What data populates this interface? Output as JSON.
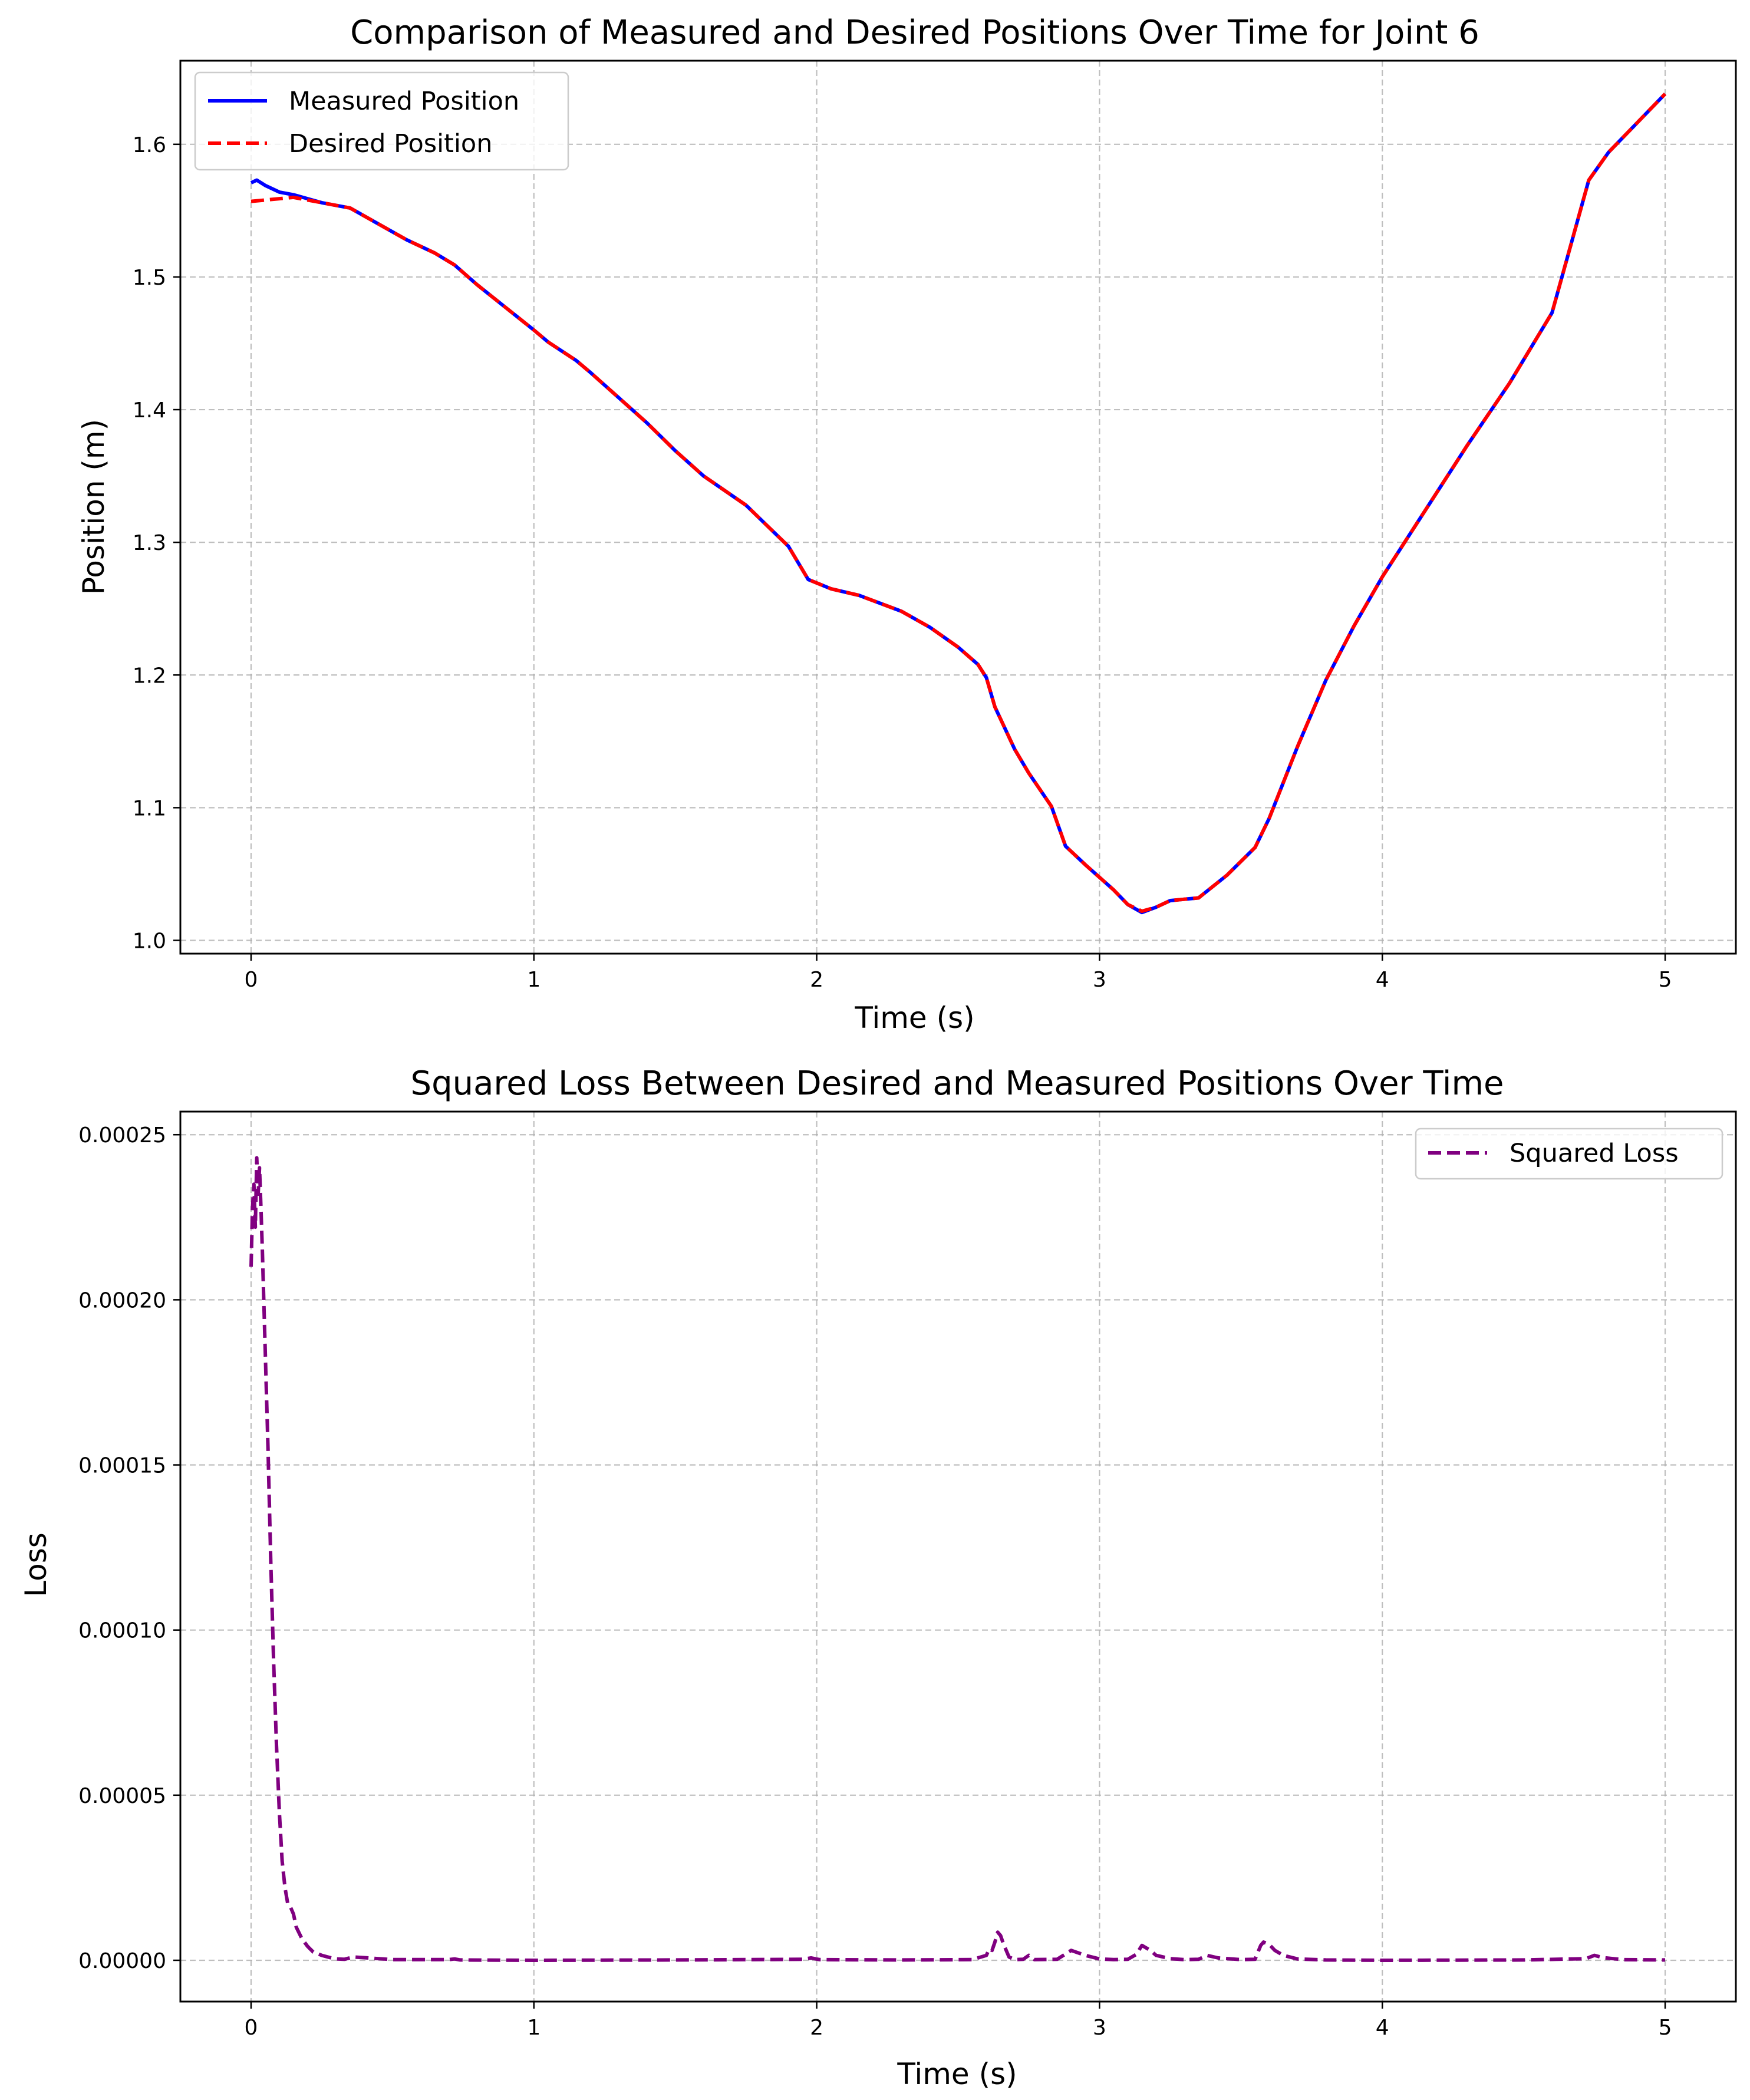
{
  "chart_data": [
    {
      "type": "line",
      "title": "Comparison of Measured and Desired Positions Over Time for Joint 6",
      "xlabel": "Time (s)",
      "ylabel": "Position (m)",
      "xlim": [
        -0.25,
        5.25
      ],
      "ylim": [
        0.99,
        1.663
      ],
      "xticks": [
        0,
        1,
        2,
        3,
        4,
        5
      ],
      "yticks": [
        1.0,
        1.1,
        1.2,
        1.3,
        1.4,
        1.5,
        1.6
      ],
      "xtick_labels": [
        "0",
        "1",
        "2",
        "3",
        "4",
        "5"
      ],
      "ytick_labels": [
        "1.0",
        "1.1",
        "1.2",
        "1.3",
        "1.4",
        "1.5",
        "1.6"
      ],
      "grid": true,
      "legend_position": "upper-left",
      "series": [
        {
          "name": "Measured Position",
          "color": "#0000ff",
          "style": "solid",
          "x": [
            0,
            0.02,
            0.05,
            0.1,
            0.15,
            0.2,
            0.25,
            0.3,
            0.35,
            0.45,
            0.55,
            0.65,
            0.72,
            0.8,
            0.9,
            1.0,
            1.05,
            1.15,
            1.2,
            1.3,
            1.4,
            1.5,
            1.6,
            1.75,
            1.9,
            1.97,
            2.05,
            2.15,
            2.3,
            2.4,
            2.5,
            2.57,
            2.6,
            2.63,
            2.7,
            2.75,
            2.83,
            2.88,
            2.95,
            3.05,
            3.1,
            3.15,
            3.2,
            3.25,
            3.3,
            3.35,
            3.45,
            3.55,
            3.6,
            3.7,
            3.8,
            3.9,
            4.0,
            4.1,
            4.2,
            4.3,
            4.45,
            4.6,
            4.73,
            4.8,
            4.9,
            5.0
          ],
          "y": [
            1.571,
            1.573,
            1.569,
            1.564,
            1.562,
            1.559,
            1.556,
            1.554,
            1.552,
            1.54,
            1.528,
            1.518,
            1.509,
            1.494,
            1.477,
            1.46,
            1.451,
            1.437,
            1.428,
            1.409,
            1.39,
            1.369,
            1.35,
            1.328,
            1.297,
            1.272,
            1.265,
            1.26,
            1.248,
            1.236,
            1.221,
            1.208,
            1.198,
            1.176,
            1.144,
            1.126,
            1.101,
            1.071,
            1.057,
            1.038,
            1.027,
            1.021,
            1.025,
            1.03,
            1.031,
            1.032,
            1.049,
            1.07,
            1.092,
            1.146,
            1.196,
            1.237,
            1.274,
            1.307,
            1.34,
            1.373,
            1.42,
            1.473,
            1.573,
            1.594,
            1.616,
            1.638
          ]
        },
        {
          "name": "Desired Position",
          "color": "#ff0000",
          "style": "dashed",
          "x": [
            0,
            0.05,
            0.1,
            0.15,
            0.2,
            0.25,
            0.3,
            0.35,
            0.45,
            0.55,
            0.65,
            0.72,
            0.8,
            0.9,
            1.0,
            1.05,
            1.15,
            1.2,
            1.3,
            1.4,
            1.5,
            1.6,
            1.75,
            1.9,
            1.97,
            2.05,
            2.15,
            2.3,
            2.4,
            2.5,
            2.57,
            2.6,
            2.63,
            2.7,
            2.75,
            2.83,
            2.88,
            2.95,
            3.05,
            3.1,
            3.15,
            3.2,
            3.25,
            3.3,
            3.35,
            3.45,
            3.55,
            3.6,
            3.7,
            3.8,
            3.9,
            4.0,
            4.1,
            4.2,
            4.3,
            4.45,
            4.6,
            4.73,
            4.8,
            4.9,
            5.0
          ],
          "y": [
            1.557,
            1.558,
            1.559,
            1.56,
            1.558,
            1.556,
            1.554,
            1.552,
            1.54,
            1.528,
            1.518,
            1.509,
            1.494,
            1.477,
            1.46,
            1.451,
            1.437,
            1.428,
            1.409,
            1.39,
            1.369,
            1.35,
            1.328,
            1.297,
            1.272,
            1.265,
            1.26,
            1.248,
            1.236,
            1.221,
            1.208,
            1.198,
            1.176,
            1.144,
            1.126,
            1.101,
            1.071,
            1.057,
            1.038,
            1.027,
            1.022,
            1.025,
            1.03,
            1.031,
            1.032,
            1.049,
            1.07,
            1.092,
            1.146,
            1.196,
            1.237,
            1.274,
            1.307,
            1.34,
            1.373,
            1.42,
            1.473,
            1.573,
            1.594,
            1.616,
            1.638
          ]
        }
      ]
    },
    {
      "type": "line",
      "title": "Squared Loss Between Desired and Measured Positions Over Time",
      "xlabel": "Time (s)",
      "ylabel": "Loss",
      "xlim": [
        -0.25,
        5.25
      ],
      "ylim": [
        -1.25e-05,
        0.000257
      ],
      "xticks": [
        0,
        1,
        2,
        3,
        4,
        5
      ],
      "yticks": [
        0,
        5e-05,
        0.0001,
        0.00015,
        0.0002,
        0.00025
      ],
      "xtick_labels": [
        "0",
        "1",
        "2",
        "3",
        "4",
        "5"
      ],
      "ytick_labels": [
        "0.00000",
        "0.00005",
        "0.00010",
        "0.00015",
        "0.00020",
        "0.00025"
      ],
      "grid": true,
      "legend_position": "upper-right",
      "series": [
        {
          "name": "Squared Loss",
          "color": "#800080",
          "style": "dashed",
          "x": [
            0,
            0.005,
            0.01,
            0.015,
            0.02,
            0.025,
            0.03,
            0.035,
            0.04,
            0.05,
            0.06,
            0.07,
            0.08,
            0.09,
            0.1,
            0.11,
            0.12,
            0.13,
            0.14,
            0.15,
            0.16,
            0.18,
            0.2,
            0.22,
            0.25,
            0.28,
            0.3,
            0.33,
            0.36,
            0.4,
            0.5,
            0.7,
            0.72,
            0.74,
            1.0,
            1.5,
            1.95,
            1.98,
            2.01,
            2.3,
            2.55,
            2.6,
            2.61,
            2.62,
            2.63,
            2.64,
            2.65,
            2.66,
            2.68,
            2.7,
            2.73,
            2.75,
            2.77,
            2.85,
            2.9,
            2.95,
            3.0,
            3.05,
            3.1,
            3.13,
            3.15,
            3.18,
            3.2,
            3.25,
            3.3,
            3.35,
            3.38,
            3.42,
            3.5,
            3.55,
            3.57,
            3.58,
            3.6,
            3.62,
            3.65,
            3.7,
            3.8,
            4.0,
            4.5,
            4.72,
            4.75,
            4.78,
            4.85,
            5.0
          ],
          "y": [
            0.00021,
            0.000228,
            0.000235,
            0.000222,
            0.000243,
            0.000232,
            0.00024,
            0.000228,
            0.000215,
            0.000185,
            0.000155,
            0.00012,
            9e-05,
            6.5e-05,
            4.5e-05,
            3e-05,
            2.2e-05,
            1.7e-05,
            1.6e-05,
            1.4e-05,
            1e-05,
            6.5e-06,
            4.2e-06,
            2.5e-06,
            1.5e-06,
            8e-07,
            4e-07,
            3e-07,
            1e-06,
            8e-07,
            2e-07,
            2e-07,
            4e-07,
            1e-07,
            0,
            1e-07,
            3e-07,
            7e-07,
            2e-07,
            1e-07,
            2e-07,
            1.5e-06,
            3.5e-06,
            3e-06,
            5.5e-06,
            8.5e-06,
            7.5e-06,
            5e-06,
            1e-06,
            2e-07,
            3e-07,
            1.5e-06,
            2e-07,
            3e-07,
            3e-06,
            1.5e-06,
            4e-07,
            2e-07,
            3e-07,
            1.8e-06,
            4.5e-06,
            3e-06,
            1.5e-06,
            5e-07,
            2e-07,
            3e-07,
            1.5e-06,
            7e-07,
            2e-07,
            3e-07,
            4.5e-06,
            5.5e-06,
            4.8e-06,
            3e-06,
            1.5e-06,
            4e-07,
            1e-07,
            0,
            1e-07,
            5e-07,
            1.5e-06,
            8e-07,
            2e-07,
            1e-07
          ]
        }
      ]
    }
  ]
}
